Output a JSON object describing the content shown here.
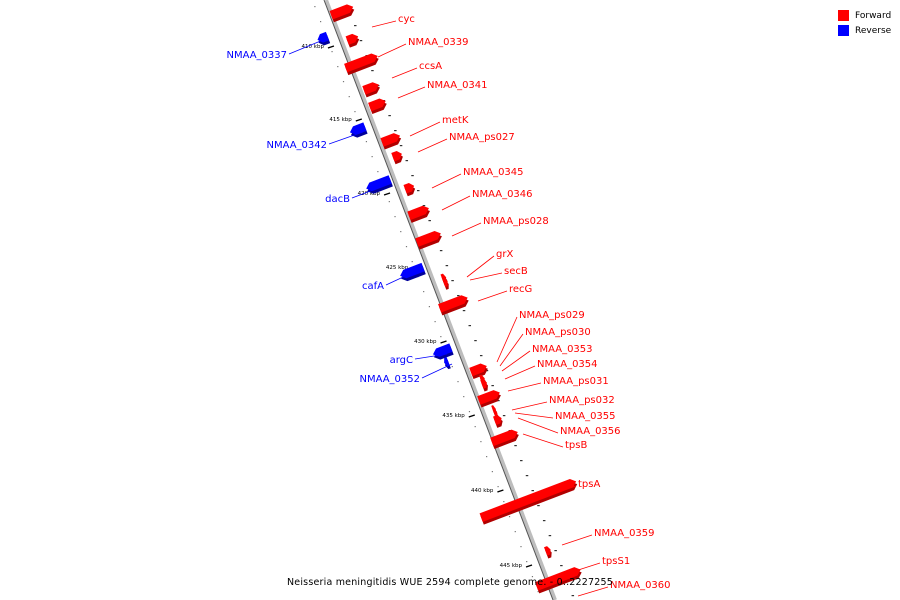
{
  "legend": {
    "forward_label": "Forward",
    "reverse_label": "Reverse",
    "forward_color": "#ff0000",
    "reverse_color": "#0000ff"
  },
  "caption": "Neisseria meningitidis WUE 2594 complete genome. - 0..2227255",
  "ticks": [
    {
      "label": "410 kbp"
    },
    {
      "label": "415 kbp"
    },
    {
      "label": "420 kbp"
    },
    {
      "label": "425 kbp"
    },
    {
      "label": "430 kbp"
    },
    {
      "label": "435 kbp"
    },
    {
      "label": "440 kbp"
    },
    {
      "label": "445 kbp"
    }
  ],
  "forward_labels": [
    "cyc",
    "NMAA_0339",
    "ccsA",
    "NMAA_0341",
    "metK",
    "NMAA_ps027",
    "NMAA_0345",
    "NMAA_0346",
    "NMAA_ps028",
    "grX",
    "secB",
    "recG",
    "NMAA_ps029",
    "NMAA_ps030",
    "NMAA_0353",
    "NMAA_0354",
    "NMAA_ps031",
    "NMAA_ps032",
    "NMAA_0355",
    "NMAA_0356",
    "tpsB",
    "tpsA",
    "NMAA_0359",
    "tpsS1",
    "NMAA_0360"
  ],
  "reverse_labels": [
    "NMAA_0337",
    "NMAA_0342",
    "dacB",
    "cafA",
    "argC",
    "NMAA_0352"
  ]
}
